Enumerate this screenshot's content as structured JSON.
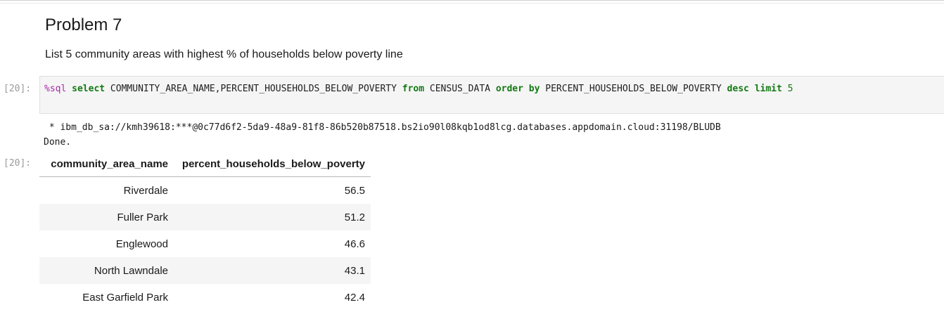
{
  "markdown": {
    "heading": "Problem 7",
    "description": "List 5 community areas with highest % of households below poverty line"
  },
  "input_cell": {
    "prompt": "[20]:",
    "code": {
      "magic": "%sql",
      "kw_select": "select",
      "part_cols": " COMMUNITY_AREA_NAME,PERCENT_HOUSEHOLDS_BELOW_POVERTY ",
      "kw_from": "from",
      "part_table": " CENSUS_DATA ",
      "kw_order_by": "order by",
      "part_ordercol": " PERCENT_HOUSEHOLDS_BELOW_POVERTY ",
      "kw_desc": "desc",
      "kw_limit": "limit",
      "limit_value": "5"
    }
  },
  "output_cell": {
    "prompt": "[20]:",
    "connection_line": " * ibm_db_sa://kmh39618:***@0c77d6f2-5da9-48a9-81f8-86b520b87518.bs2io90l08kqb1od8lcg.databases.appdomain.cloud:31198/BLUDB",
    "done_line": "Done.",
    "table": {
      "headers": [
        "community_area_name",
        "percent_households_below_poverty"
      ],
      "rows": [
        [
          "Riverdale",
          "56.5"
        ],
        [
          "Fuller Park",
          "51.2"
        ],
        [
          "Englewood",
          "46.6"
        ],
        [
          "North Lawndale",
          "43.1"
        ],
        [
          "East Garfield Park",
          "42.4"
        ]
      ]
    }
  }
}
